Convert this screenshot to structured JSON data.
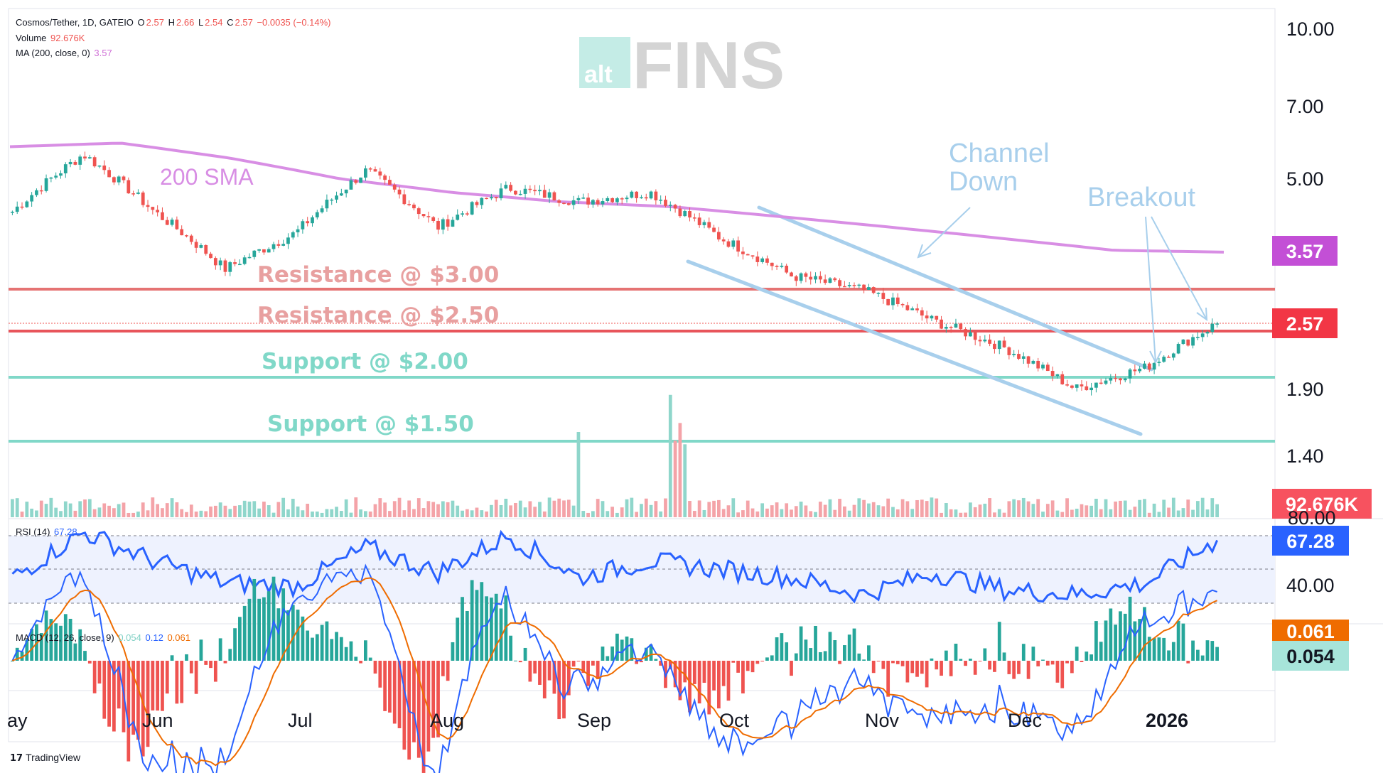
{
  "header": {
    "symbol": "Cosmos/Tether, 1D, GATEIO",
    "o_label": "O",
    "o": "2.57",
    "h_label": "H",
    "h": "2.66",
    "l_label": "L",
    "l": "2.54",
    "c_label": "C",
    "c": "2.57",
    "change": "−0.0035 (−0.14%)",
    "volume_label": "Volume",
    "volume": "92.676K",
    "ma_label": "MA (200, close, 0)",
    "ma": "3.57",
    "rsi_label": "RSI (14)",
    "rsi": "67.28",
    "macd_label": "MACD (12, 26, close, 9)",
    "macd_hist": "0.054",
    "macd_line": "0.12",
    "macd_signal": "0.061"
  },
  "watermark": {
    "alt": "alt",
    "fins": "FINS"
  },
  "footer": {
    "brand": "TradingView"
  },
  "colors": {
    "up": "#26a69a",
    "down": "#ef5350",
    "sma": "#d88ee4",
    "resistance": "#e57373",
    "support": "#80d8c8",
    "channel": "#a8cfec",
    "rsi": "#2962ff",
    "macd": "#2962ff",
    "signal": "#ef6c00"
  },
  "chart_data": {
    "type": "candlestick",
    "price_scale": "log",
    "price_axis_ticks": [
      "10.00",
      "7.00",
      "5.00",
      "1.90",
      "1.40"
    ],
    "time_axis_labels": [
      "ay",
      "Jun",
      "Jul",
      "Aug",
      "Sep",
      "Oct",
      "Nov",
      "Dec",
      "2026"
    ],
    "price_badges": {
      "sma": "3.57",
      "last": "2.57",
      "volume": "92.676K",
      "rsi": "67.28",
      "macd_signal": "0.061",
      "macd_hist": "0.054"
    },
    "rsi_axis_ticks": [
      "80.00",
      "40.00"
    ],
    "annotations": {
      "sma_label": "200 SMA",
      "resistance_3": "Resistance @ $3.00",
      "resistance_25": "Resistance @ $2.50",
      "support_2": "Support @ $2.00",
      "support_15": "Support @ $1.50",
      "channel": [
        "Channel",
        "Down"
      ],
      "breakout": "Breakout"
    },
    "horizontal_levels": [
      3.0,
      2.5,
      2.0,
      1.5
    ],
    "last_close": 2.57,
    "sma_value": 3.57,
    "price_path": [
      {
        "month": "May",
        "close": 4.3
      },
      {
        "month": "May",
        "close": 5.6
      },
      {
        "month": "Jun",
        "close": 4.3
      },
      {
        "month": "Jun",
        "close": 3.3
      },
      {
        "month": "Jul",
        "close": 3.9
      },
      {
        "month": "Jul",
        "close": 5.2
      },
      {
        "month": "Aug",
        "close": 4.0
      },
      {
        "month": "Aug",
        "close": 4.8
      },
      {
        "month": "Sep",
        "close": 4.5
      },
      {
        "month": "Sep",
        "close": 4.7
      },
      {
        "month": "Oct",
        "close": 3.8
      },
      {
        "month": "Oct",
        "close": 3.2
      },
      {
        "month": "Nov",
        "close": 3.0
      },
      {
        "month": "Nov",
        "close": 2.6
      },
      {
        "month": "Dec",
        "close": 2.3
      },
      {
        "month": "Dec",
        "close": 1.9
      },
      {
        "month": "Jan",
        "close": 2.1
      },
      {
        "month": "Jan",
        "close": 2.57
      }
    ],
    "sma_path": [
      5.8,
      5.9,
      5.5,
      5.0,
      4.7,
      4.5,
      4.4,
      4.2,
      4.0,
      3.8,
      3.6,
      3.57
    ],
    "rsi_path": [
      45,
      72,
      55,
      42,
      40,
      63,
      48,
      70,
      45,
      55,
      50,
      45,
      35,
      48,
      38,
      35,
      42,
      67.28
    ]
  }
}
